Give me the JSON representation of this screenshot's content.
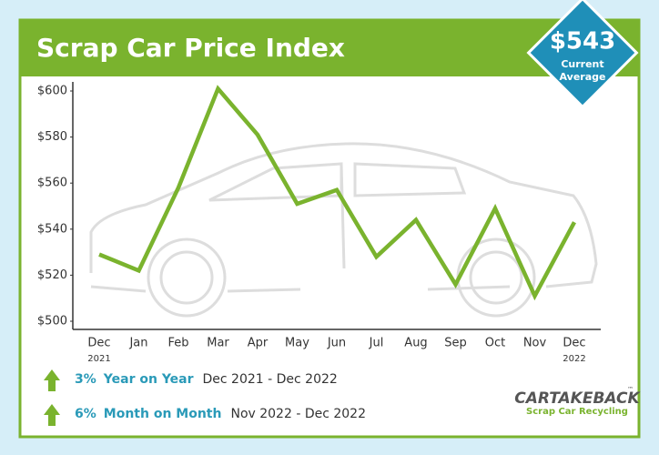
{
  "chart_data": {
    "type": "line",
    "title": "Scrap Car Price Index",
    "badge": {
      "value_text": "$543",
      "caption": [
        "Current",
        "Average"
      ]
    },
    "categories": [
      "Dec",
      "Jan",
      "Feb",
      "Mar",
      "Apr",
      "May",
      "Jun",
      "Jul",
      "Aug",
      "Sep",
      "Oct",
      "Nov",
      "Dec"
    ],
    "x_sublabels": [
      "2021",
      null,
      null,
      null,
      null,
      null,
      null,
      null,
      null,
      null,
      null,
      null,
      "2022"
    ],
    "values": [
      529,
      522,
      558,
      601,
      581,
      551,
      557,
      528,
      544,
      516,
      549,
      511,
      543
    ],
    "color": "#7ab32e",
    "ylim": [
      500,
      600
    ],
    "yticks": [
      {
        "value": 500,
        "label": "$500"
      },
      {
        "value": 520,
        "label": "$520"
      },
      {
        "value": 540,
        "label": "$540"
      },
      {
        "value": 560,
        "label": "$560"
      },
      {
        "value": 580,
        "label": "$580"
      },
      {
        "value": 600,
        "label": "$600"
      }
    ],
    "grid": false,
    "stats": [
      {
        "change": "3%",
        "period": "Year on Year",
        "range": "Dec 2021 - Dec 2022"
      },
      {
        "change": "6%",
        "period": "Month on Month",
        "range": "Nov 2022 - Dec 2022"
      }
    ],
    "logo": {
      "name": "CARTAKEBACK",
      "tm": "™",
      "tagline": "Scrap Car Recycling"
    }
  }
}
